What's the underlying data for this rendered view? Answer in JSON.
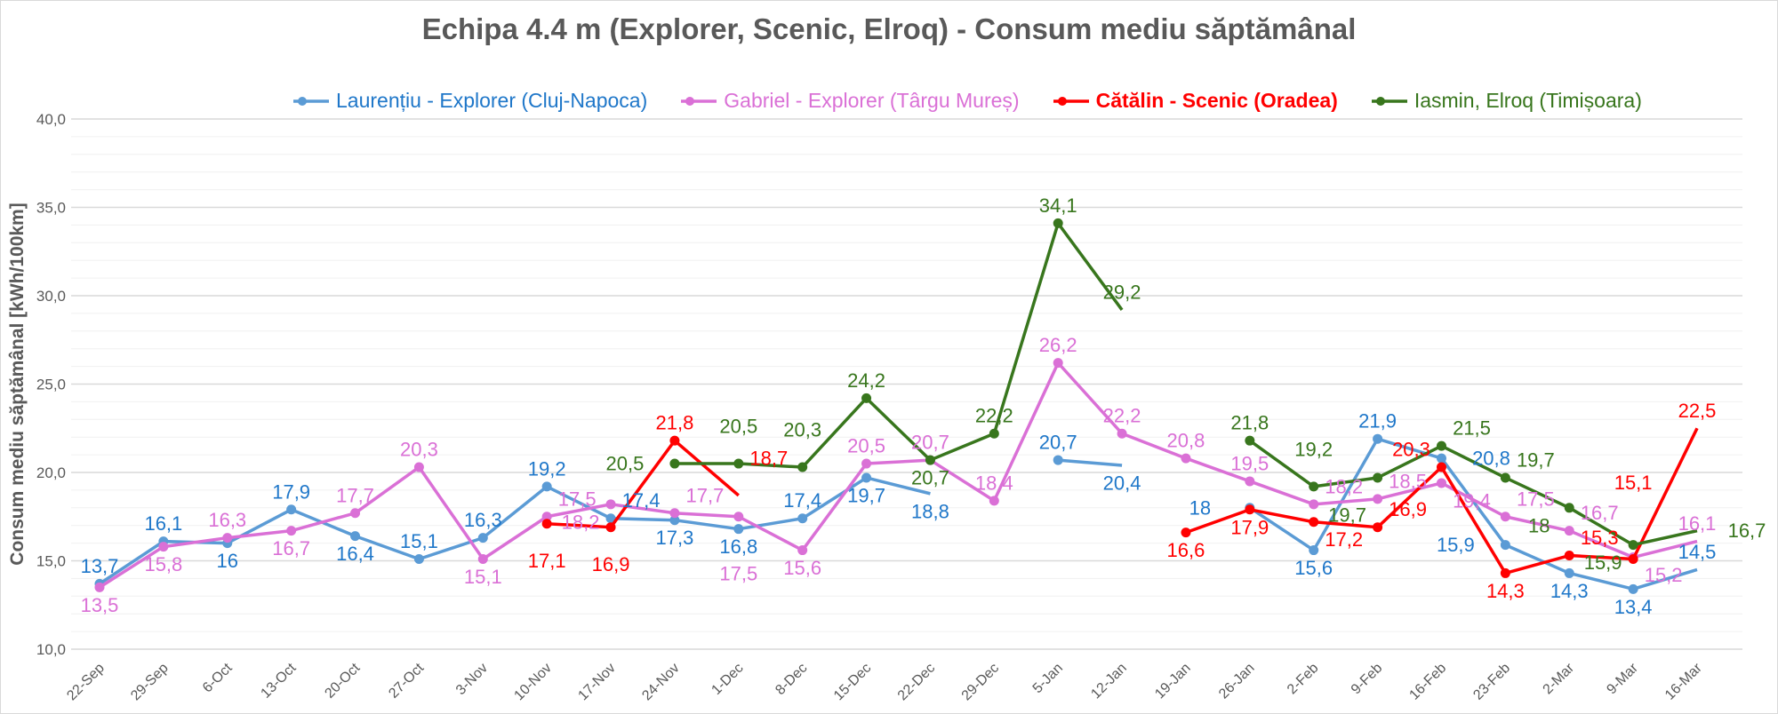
{
  "chart_data": {
    "type": "line",
    "title": "Echipa 4.4 m (Explorer, Scenic, Elroq) - Consum mediu săptămânal",
    "xlabel": "",
    "ylabel": "Consum mediu săptămânal [kWh/100km]",
    "ylim": [
      10,
      40
    ],
    "yticks": [
      "10,0",
      "15,0",
      "20,0",
      "25,0",
      "30,0",
      "35,0",
      "40,0"
    ],
    "grid": true,
    "legend_position": "top",
    "categories": [
      "22-Sep",
      "29-Sep",
      "6-Oct",
      "13-Oct",
      "20-Oct",
      "27-Oct",
      "3-Nov",
      "10-Nov",
      "17-Nov",
      "24-Nov",
      "1-Dec",
      "8-Dec",
      "15-Dec",
      "22-Dec",
      "29-Dec",
      "5-Jan",
      "12-Jan",
      "19-Jan",
      "26-Jan",
      "2-Feb",
      "9-Feb",
      "16-Feb",
      "23-Feb",
      "2-Mar",
      "9-Mar",
      "16-Mar"
    ],
    "series": [
      {
        "name": "Laurențiu - Explorer (Cluj-Napoca)",
        "color": "#5b9bd5",
        "label_color": "#1f77c9",
        "bold": false,
        "values": [
          13.7,
          16.1,
          16.0,
          17.9,
          16.4,
          15.1,
          16.3,
          19.2,
          17.4,
          17.3,
          16.8,
          17.4,
          19.7,
          18.8,
          null,
          20.7,
          20.4,
          null,
          18,
          15.6,
          21.9,
          20.8,
          15.9,
          14.3,
          13.4,
          14.5
        ]
      },
      {
        "name": "Gabriel - Explorer (Târgu Mureș)",
        "color": "#da70d6",
        "label_color": "#da70d6",
        "bold": false,
        "values": [
          13.5,
          15.8,
          16.3,
          16.7,
          17.7,
          20.3,
          15.1,
          17.5,
          18.2,
          17.7,
          17.5,
          15.6,
          20.5,
          20.7,
          18.4,
          26.2,
          22.2,
          20.8,
          19.5,
          18.2,
          18.5,
          19.4,
          17.5,
          16.7,
          15.2,
          16.1
        ]
      },
      {
        "name": "Cătălin - Scenic (Oradea)",
        "color": "#ff0000",
        "label_color": "#ff0000",
        "bold": true,
        "values": [
          null,
          null,
          null,
          null,
          null,
          null,
          null,
          17.1,
          16.9,
          21.8,
          18.7,
          null,
          null,
          null,
          null,
          null,
          null,
          16.6,
          17.9,
          17.2,
          16.9,
          20.3,
          14.3,
          15.3,
          15.1,
          22.5
        ]
      },
      {
        "name": "Iasmin, Elroq (Timișoara)",
        "color": "#38761d",
        "label_color": "#38761d",
        "bold": false,
        "values": [
          null,
          null,
          null,
          null,
          null,
          null,
          null,
          null,
          null,
          20.5,
          20.5,
          20.3,
          24.2,
          20.7,
          22.2,
          34.1,
          29.2,
          null,
          21.8,
          19.2,
          19.7,
          21.5,
          19.7,
          18,
          15.9,
          16.7
        ]
      }
    ]
  }
}
